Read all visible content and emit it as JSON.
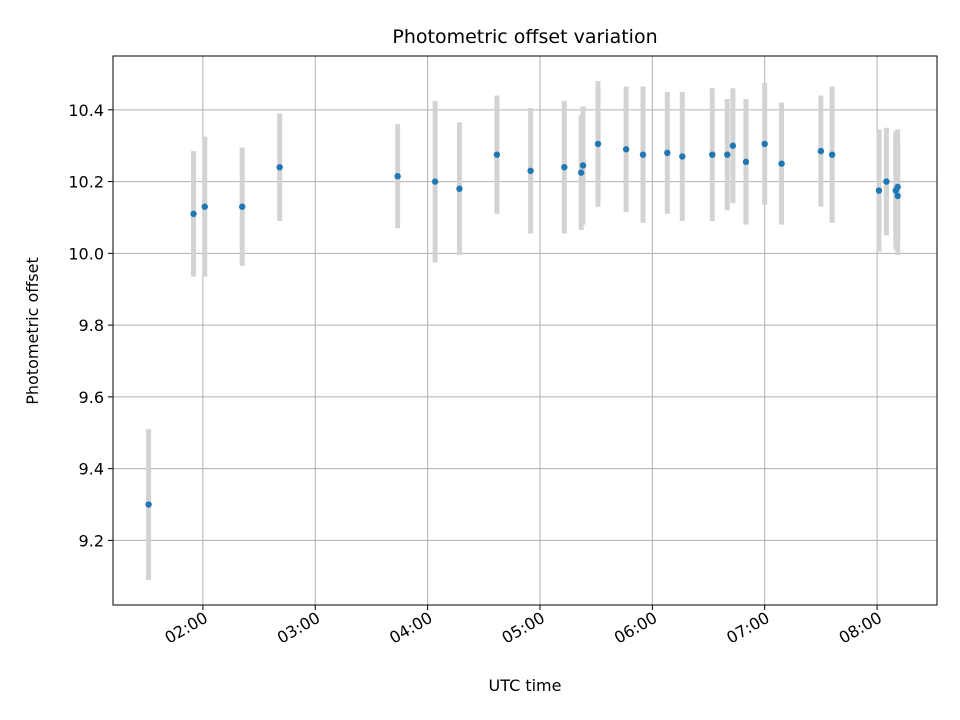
{
  "chart_data": {
    "type": "scatter",
    "title": "Photometric offset variation",
    "xlabel": "UTC time",
    "ylabel": "Photometric offset",
    "xlim": [
      "01:12",
      "08:32"
    ],
    "ylim": [
      9.02,
      10.55
    ],
    "x_ticks": [
      "02:00",
      "03:00",
      "04:00",
      "05:00",
      "06:00",
      "07:00",
      "08:00"
    ],
    "y_ticks": [
      9.2,
      9.4,
      9.6,
      9.8,
      10.0,
      10.2,
      10.4
    ],
    "grid": true,
    "colors": {
      "point": "#1f77b4",
      "errorbar": "#d3d3d3",
      "grid": "#b0b0b0"
    },
    "points": [
      {
        "x": "01:31",
        "y": 9.3,
        "yerr": 0.21
      },
      {
        "x": "01:55",
        "y": 10.11,
        "yerr": 0.175
      },
      {
        "x": "02:01",
        "y": 10.13,
        "yerr": 0.195
      },
      {
        "x": "02:21",
        "y": 10.13,
        "yerr": 0.165
      },
      {
        "x": "02:41",
        "y": 10.24,
        "yerr": 0.15
      },
      {
        "x": "03:44",
        "y": 10.215,
        "yerr": 0.145
      },
      {
        "x": "04:04",
        "y": 10.2,
        "yerr": 0.225
      },
      {
        "x": "04:17",
        "y": 10.18,
        "yerr": 0.185
      },
      {
        "x": "04:37",
        "y": 10.275,
        "yerr": 0.165
      },
      {
        "x": "04:55",
        "y": 10.23,
        "yerr": 0.175
      },
      {
        "x": "05:13",
        "y": 10.24,
        "yerr": 0.185
      },
      {
        "x": "05:22",
        "y": 10.225,
        "yerr": 0.16
      },
      {
        "x": "05:23",
        "y": 10.245,
        "yerr": 0.165
      },
      {
        "x": "05:31",
        "y": 10.305,
        "yerr": 0.175
      },
      {
        "x": "05:46",
        "y": 10.29,
        "yerr": 0.175
      },
      {
        "x": "05:55",
        "y": 10.275,
        "yerr": 0.19
      },
      {
        "x": "06:08",
        "y": 10.28,
        "yerr": 0.17
      },
      {
        "x": "06:16",
        "y": 10.27,
        "yerr": 0.18
      },
      {
        "x": "06:32",
        "y": 10.275,
        "yerr": 0.185
      },
      {
        "x": "06:40",
        "y": 10.275,
        "yerr": 0.155
      },
      {
        "x": "06:43",
        "y": 10.3,
        "yerr": 0.16
      },
      {
        "x": "06:50",
        "y": 10.255,
        "yerr": 0.175
      },
      {
        "x": "07:00",
        "y": 10.305,
        "yerr": 0.17
      },
      {
        "x": "07:09",
        "y": 10.25,
        "yerr": 0.17
      },
      {
        "x": "07:30",
        "y": 10.285,
        "yerr": 0.155
      },
      {
        "x": "07:36",
        "y": 10.275,
        "yerr": 0.19
      },
      {
        "x": "08:01",
        "y": 10.175,
        "yerr": 0.17
      },
      {
        "x": "08:05",
        "y": 10.2,
        "yerr": 0.15
      },
      {
        "x": "08:10",
        "y": 10.175,
        "yerr": 0.165
      },
      {
        "x": "08:11",
        "y": 10.16,
        "yerr": 0.165
      },
      {
        "x": "08:11",
        "y": 10.185,
        "yerr": 0.16
      }
    ]
  }
}
